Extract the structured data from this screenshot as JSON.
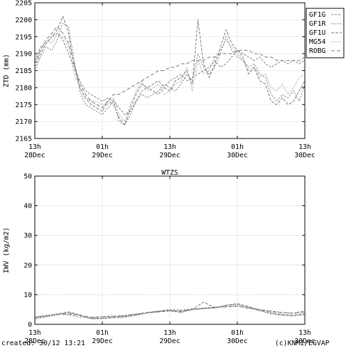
{
  "chart_data": [
    {
      "type": "line",
      "title": "",
      "ylabel": "ZTD (mm)",
      "xlabel": "",
      "ylim": [
        2165,
        2205
      ],
      "yticks": [
        2165,
        2170,
        2175,
        2180,
        2185,
        2190,
        2195,
        2200,
        2205
      ],
      "xlim": [
        0,
        48
      ],
      "xticks": [
        {
          "x": 0,
          "line1": "13h",
          "line2": "28Dec"
        },
        {
          "x": 12,
          "line1": "01h",
          "line2": "29Dec"
        },
        {
          "x": 24,
          "line1": "13h",
          "line2": "29Dec"
        },
        {
          "x": 36,
          "line1": "01h",
          "line2": "30Dec"
        },
        {
          "x": 48,
          "line1": "13h",
          "line2": "30Dec"
        }
      ],
      "grid": true,
      "legend": "top-right",
      "series": [
        {
          "name": "GF1G",
          "color": "#777777",
          "dash": "3,2",
          "x": [
            0,
            1,
            2,
            3,
            4,
            5,
            6,
            7,
            8,
            9,
            10,
            11,
            12,
            13,
            14,
            15,
            16,
            17,
            18,
            19,
            20,
            21,
            22,
            23,
            24,
            25,
            26,
            27,
            28,
            29,
            30,
            31,
            32,
            33,
            34,
            35,
            36,
            37,
            38,
            39,
            40,
            41,
            42,
            43,
            44,
            45,
            46,
            47,
            48
          ],
          "values": [
            2188,
            2192,
            2193,
            2195,
            2196,
            2194,
            2190,
            2186,
            2182,
            2179,
            2178,
            2177,
            2176,
            2177,
            2176,
            2174,
            2172,
            2173,
            2176,
            2179,
            2180,
            2179,
            2178,
            2180,
            2182,
            2183,
            2184,
            2182,
            2183,
            2184,
            2185,
            2186,
            2188,
            2186,
            2187,
            2189,
            2191,
            2190,
            2189,
            2188,
            2189,
            2187,
            2186,
            2187,
            2188,
            2187,
            2188,
            2187,
            2188
          ]
        },
        {
          "name": "GF1R",
          "color": "#777777",
          "dash": "2,2",
          "x": [
            0,
            1,
            2,
            3,
            4,
            5,
            6,
            7,
            8,
            9,
            10,
            11,
            12,
            13,
            14,
            15,
            16,
            17,
            18,
            19,
            20,
            21,
            22,
            23,
            24,
            25,
            26,
            27,
            28,
            29,
            30,
            31,
            32,
            33,
            34,
            35,
            36,
            37,
            38,
            39,
            40,
            41,
            42,
            43,
            44,
            45,
            46,
            47,
            48
          ],
          "values": [
            2185,
            2189,
            2192,
            2191,
            2194,
            2199,
            2198,
            2188,
            2179,
            2175,
            2174,
            2173,
            2172,
            2174,
            2176,
            2170,
            2169,
            2172,
            2176,
            2178,
            2177,
            2178,
            2179,
            2181,
            2180,
            2179,
            2181,
            2184,
            2182,
            2190,
            2186,
            2184,
            2186,
            2190,
            2195,
            2191,
            2189,
            2188,
            2186,
            2187,
            2184,
            2183,
            2178,
            2176,
            2178,
            2177,
            2179,
            2176,
            2181
          ]
        },
        {
          "name": "GF1U",
          "color": "#777777",
          "dash": "4,2",
          "x": [
            0,
            1,
            2,
            3,
            4,
            5,
            6,
            7,
            8,
            9,
            10,
            11,
            12,
            13,
            14,
            15,
            16,
            17,
            18,
            19,
            20,
            21,
            22,
            23,
            24,
            25,
            26,
            27,
            28,
            29,
            30,
            31,
            32,
            33,
            34,
            35,
            36,
            37,
            38,
            39,
            40,
            41,
            42,
            43,
            44,
            45,
            46,
            47,
            48
          ],
          "values": [
            2186,
            2190,
            2193,
            2195,
            2197,
            2201,
            2196,
            2186,
            2180,
            2177,
            2175,
            2174,
            2173,
            2176,
            2175,
            2171,
            2169,
            2174,
            2178,
            2181,
            2180,
            2181,
            2182,
            2180,
            2179,
            2182,
            2183,
            2185,
            2181,
            2200,
            2187,
            2183,
            2187,
            2192,
            2197,
            2193,
            2191,
            2189,
            2184,
            2186,
            2182,
            2181,
            2176,
            2175,
            2177,
            2175,
            2176,
            2179,
            2182
          ]
        },
        {
          "name": "MG54",
          "color": "#777777",
          "dash": "1,2",
          "x": [
            0,
            1,
            2,
            3,
            4,
            5,
            6,
            7,
            8,
            9,
            10,
            11,
            12,
            13,
            14,
            15,
            16,
            17,
            18,
            19,
            20,
            21,
            22,
            23,
            24,
            25,
            26,
            27,
            28,
            29,
            30,
            31,
            32,
            33,
            34,
            35,
            36,
            37,
            38,
            39,
            40,
            41,
            42,
            43,
            44,
            45,
            46,
            47,
            48
          ],
          "values": [
            2187,
            2191,
            2194,
            2193,
            2196,
            2195,
            2192,
            2184,
            2180,
            2177,
            2176,
            2176,
            2175,
            2175,
            2177,
            2172,
            2170,
            2175,
            2179,
            2182,
            2179,
            2180,
            2181,
            2178,
            2179,
            2181,
            2182,
            2186,
            2179,
            2188,
            2184,
            2185,
            2189,
            2191,
            2194,
            2192,
            2190,
            2188,
            2185,
            2186,
            2183,
            2184,
            2180,
            2179,
            2181,
            2178,
            2180,
            2183,
            2184
          ]
        },
        {
          "name": "ROBG",
          "color": "#777777",
          "dash": "5,3",
          "x": [
            0,
            1,
            2,
            3,
            4,
            5,
            6,
            7,
            8,
            9,
            10,
            11,
            12,
            13,
            14,
            15,
            16,
            17,
            18,
            19,
            20,
            21,
            22,
            23,
            24,
            25,
            26,
            27,
            28,
            29,
            30,
            31,
            32,
            33,
            34,
            35,
            36,
            37,
            38,
            39,
            40,
            41,
            42,
            43,
            44,
            45,
            46,
            47,
            48
          ],
          "values": [
            2187,
            2191,
            2194,
            2196,
            2198,
            2196,
            2193,
            2187,
            2181,
            2178,
            2176,
            2175,
            2174,
            2176,
            2178,
            2178,
            2179,
            2180,
            2181,
            2182,
            2183,
            2184,
            2185,
            2185,
            2186,
            2186,
            2187,
            2187,
            2188,
            2188,
            2188,
            2189,
            2189,
            2190,
            2190,
            2190,
            2191,
            2191,
            2191,
            2190,
            2190,
            2189,
            2189,
            2188,
            2188,
            2188,
            2188,
            2188,
            2189
          ]
        }
      ]
    },
    {
      "type": "line",
      "title": "WTZS",
      "ylabel": "IWV (kg/m2)",
      "xlabel": "",
      "ylim": [
        0,
        50
      ],
      "yticks": [
        0,
        10,
        20,
        30,
        40,
        50
      ],
      "xlim": [
        0,
        48
      ],
      "xticks": [
        {
          "x": 0,
          "line1": "13h",
          "line2": "28Dec"
        },
        {
          "x": 12,
          "line1": "01h",
          "line2": "29Dec"
        },
        {
          "x": 24,
          "line1": "13h",
          "line2": "29Dec"
        },
        {
          "x": 36,
          "line1": "01h",
          "line2": "30Dec"
        },
        {
          "x": 48,
          "line1": "13h",
          "line2": "30Dec"
        }
      ],
      "grid": true,
      "series": [
        {
          "color": "#777777",
          "dash": "3,2",
          "x": [
            0,
            2,
            4,
            6,
            8,
            10,
            12,
            14,
            16,
            18,
            20,
            22,
            24,
            26,
            28,
            30,
            32,
            34,
            36,
            38,
            40,
            42,
            44,
            46,
            48
          ],
          "values": [
            2.5,
            3.0,
            3.5,
            3.2,
            2.5,
            2.2,
            2.6,
            2.8,
            3.0,
            3.5,
            4.0,
            4.5,
            5.0,
            4.8,
            5.2,
            5.5,
            5.8,
            6.0,
            6.2,
            5.5,
            5.0,
            4.5,
            4.0,
            3.8,
            4.5
          ]
        },
        {
          "color": "#777777",
          "dash": "2,2",
          "x": [
            0,
            2,
            4,
            6,
            8,
            10,
            12,
            14,
            16,
            18,
            20,
            22,
            24,
            26,
            28,
            30,
            32,
            34,
            36,
            38,
            40,
            42,
            44,
            46,
            48
          ],
          "values": [
            1.8,
            2.5,
            3.2,
            4.0,
            3.0,
            1.8,
            1.9,
            2.2,
            2.4,
            3.0,
            3.8,
            4.2,
            4.5,
            4.0,
            5.0,
            5.2,
            5.5,
            6.5,
            6.8,
            5.8,
            4.5,
            3.5,
            3.0,
            2.8,
            3.2
          ]
        },
        {
          "color": "#777777",
          "dash": "4,2",
          "x": [
            0,
            2,
            4,
            6,
            8,
            10,
            12,
            14,
            16,
            18,
            20,
            22,
            24,
            26,
            28,
            30,
            32,
            34,
            36,
            38,
            40,
            42,
            44,
            46,
            48
          ],
          "values": [
            2.0,
            2.8,
            3.5,
            4.2,
            3.2,
            2.0,
            2.0,
            2.3,
            2.6,
            3.2,
            4.0,
            4.4,
            4.7,
            4.2,
            5.1,
            7.5,
            5.6,
            6.4,
            7.0,
            6.0,
            4.8,
            3.8,
            3.2,
            3.0,
            3.5
          ]
        },
        {
          "color": "#777777",
          "dash": "1,2",
          "x": [
            0,
            2,
            4,
            6,
            8,
            10,
            12,
            14,
            16,
            18,
            20,
            22,
            24,
            26,
            28,
            30,
            32,
            34,
            36,
            38,
            40,
            42,
            44,
            46,
            48
          ],
          "values": [
            2.2,
            2.7,
            3.4,
            3.8,
            3.1,
            2.1,
            2.2,
            2.5,
            2.7,
            3.3,
            3.9,
            4.3,
            4.6,
            4.1,
            5.0,
            5.4,
            5.7,
            6.3,
            6.6,
            5.7,
            4.6,
            3.9,
            3.4,
            3.2,
            3.8
          ]
        },
        {
          "color": "#777777",
          "dash": "5,3",
          "x": [
            0,
            2,
            4,
            6,
            8,
            10,
            12,
            14,
            16,
            18,
            20,
            22,
            24,
            26,
            28,
            30,
            32,
            34,
            36,
            38,
            40,
            42,
            44,
            46,
            48
          ],
          "values": [
            2.4,
            2.9,
            3.3,
            3.5,
            3.0,
            2.4,
            2.5,
            2.7,
            2.9,
            3.4,
            3.9,
            4.2,
            4.6,
            4.5,
            5.0,
            5.3,
            5.6,
            5.9,
            6.1,
            5.4,
            4.9,
            4.3,
            3.9,
            3.7,
            4.2
          ]
        }
      ]
    }
  ],
  "footer": {
    "created": "created: 30/12 13:21",
    "credit": "(c)KNMI/EGVAP"
  }
}
